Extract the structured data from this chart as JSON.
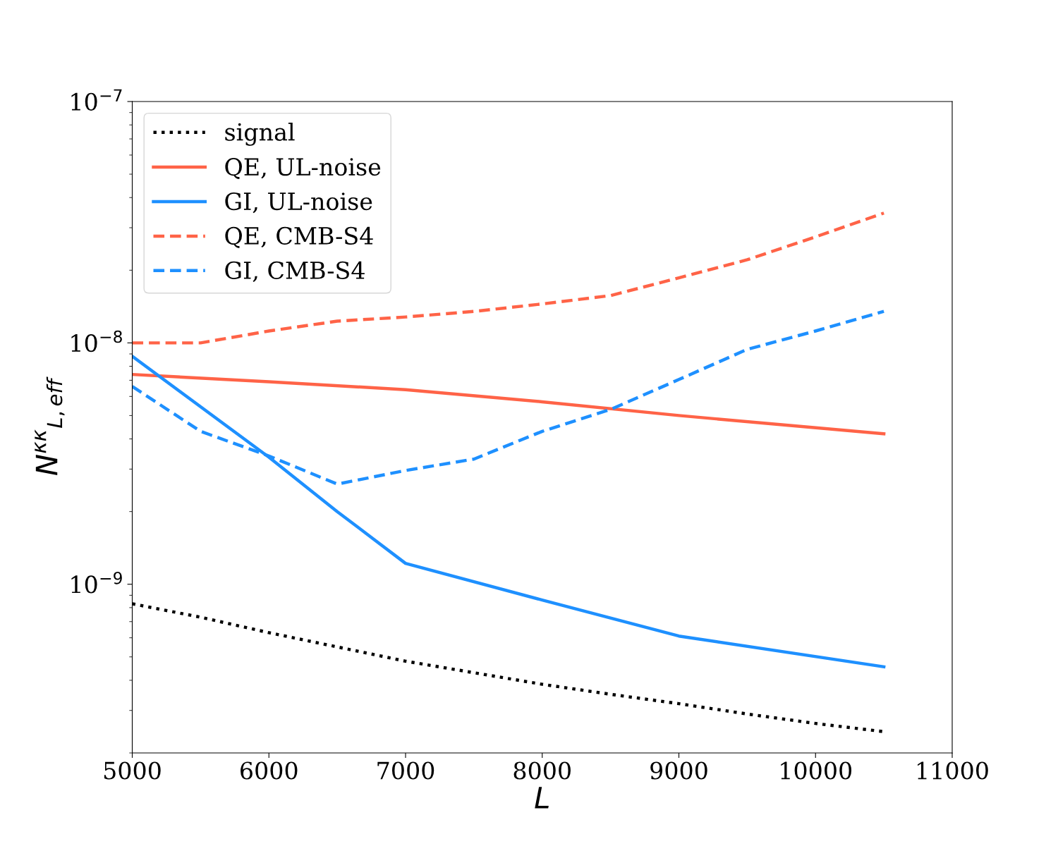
{
  "chart_data": {
    "type": "line",
    "xlabel": "L",
    "ylabel": "N$^{κκ}$$_{L,eff}$",
    "log": "y",
    "grid": false,
    "legend": "top left",
    "xlim": [
      5000,
      11000
    ],
    "xticks": [
      5000,
      6000,
      7000,
      8000,
      9000,
      10000,
      11000
    ],
    "ylim": [
      2e-10,
      1e-07
    ],
    "yticks": [
      {
        "value": 1e-09,
        "label": "10$^{−9}$"
      },
      {
        "value": 1e-08,
        "label": "10$^{−8}$"
      },
      {
        "value": 1e-07,
        "label": "10$^{−7}$"
      }
    ],
    "series": [
      {
        "name": "signal",
        "color": "#000000",
        "line_style": "dotted",
        "x": [
          5000,
          5500,
          6000,
          6500,
          7000,
          7500,
          8000,
          8500,
          9000,
          9500,
          10000,
          10500
        ],
        "values": [
          8.3e-10,
          7.3e-10,
          6.3e-10,
          5.5e-10,
          4.8e-10,
          4.3e-10,
          3.85e-10,
          3.5e-10,
          3.2e-10,
          2.9e-10,
          2.65e-10,
          2.45e-10
        ]
      },
      {
        "name": "QE, UL-noise",
        "color": "#ff6347",
        "line_style": "solid",
        "x": [
          5000,
          6000,
          7000,
          8000,
          9000,
          10500
        ],
        "values": [
          7.4e-09,
          6.9e-09,
          6.4e-09,
          5.7e-09,
          5e-09,
          4.2e-09
        ]
      },
      {
        "name": "GI, UL-noise",
        "color": "#1e90ff",
        "line_style": "solid",
        "x": [
          5000,
          6000,
          6500,
          7000,
          8000,
          9000,
          10500
        ],
        "values": [
          8.8e-09,
          3.36e-09,
          2e-09,
          1.22e-09,
          8.6e-10,
          6.1e-10,
          4.55e-10
        ]
      },
      {
        "name": "QE, CMB-S4",
        "color": "#ff6347",
        "line_style": "dashed",
        "x": [
          5000,
          5500,
          6000,
          6500,
          7000,
          7500,
          8000,
          8500,
          9000,
          9500,
          10000,
          10500
        ],
        "values": [
          1e-08,
          1e-08,
          1.12e-08,
          1.23e-08,
          1.28e-08,
          1.35e-08,
          1.45e-08,
          1.57e-08,
          1.86e-08,
          2.21e-08,
          2.75e-08,
          3.45e-08
        ]
      },
      {
        "name": "GI, CMB-S4",
        "color": "#1e90ff",
        "line_style": "dashed",
        "x": [
          5000,
          5500,
          6000,
          6500,
          7000,
          7500,
          8000,
          8500,
          9000,
          9500,
          10000,
          10500
        ],
        "values": [
          6.6e-09,
          4.3e-09,
          3.4e-09,
          2.6e-09,
          2.96e-09,
          3.3e-09,
          4.3e-09,
          5.3e-09,
          7.05e-09,
          9.4e-09,
          1.12e-08,
          1.35e-08
        ]
      }
    ]
  }
}
